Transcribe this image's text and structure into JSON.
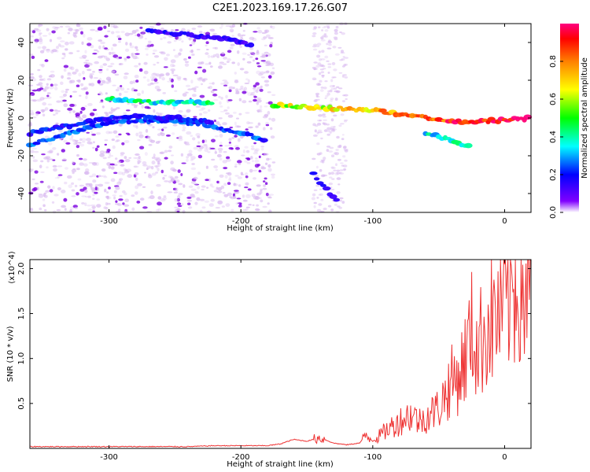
{
  "title": "C2E1.2023.169.17.26.G07",
  "colors": {
    "snr_line": "#ee3333",
    "axis": "#000000",
    "spectro_low": "#d8b8f0",
    "spectro_mid": "#7b00e0"
  },
  "chart_data": [
    {
      "type": "heatmap",
      "xlabel": "Height of straight line (km)",
      "ylabel": "Frequency (Hz)",
      "xlim": [
        -360,
        20
      ],
      "ylim": [
        -50,
        50
      ],
      "xticks": [
        -300,
        -200,
        -100,
        0
      ],
      "yticks": [
        -40,
        -20,
        0,
        20,
        40
      ],
      "colorbar": {
        "label": "Normalized spectral amplitude",
        "range": [
          0,
          1
        ],
        "ticks": [
          "0.0",
          "0.2",
          "0.4",
          "0.6",
          "0.8"
        ],
        "colormap": "rainbow"
      },
      "ridges": [
        {
          "points": [
            [
              -360,
              -14
            ],
            [
              -330,
              -8
            ],
            [
              -300,
              -2
            ],
            [
              -260,
              -1
            ],
            [
              -230,
              -3
            ],
            [
              -200,
              -8
            ],
            [
              -180,
              -12
            ]
          ],
          "amplitude": 0.3
        },
        {
          "points": [
            [
              -360,
              -8
            ],
            [
              -330,
              -4
            ],
            [
              -300,
              0
            ],
            [
              -280,
              1
            ],
            [
              -250,
              0
            ],
            [
              -220,
              -2
            ]
          ],
          "amplitude": 0.25
        },
        {
          "points": [
            [
              -300,
              10
            ],
            [
              -280,
              9
            ],
            [
              -260,
              8
            ],
            [
              -220,
              8
            ]
          ],
          "amplitude": 0.5
        },
        {
          "points": [
            [
              -270,
              46
            ],
            [
              -240,
              44
            ],
            [
              -210,
              42
            ],
            [
              -190,
              38
            ]
          ],
          "amplitude": 0.2
        },
        {
          "points": [
            [
              -175,
              7
            ],
            [
              -150,
              6
            ],
            [
              -125,
              5
            ],
            [
              -100,
              4
            ],
            [
              -80,
              2
            ],
            [
              -60,
              0
            ],
            [
              -40,
              -2
            ],
            [
              -20,
              -2
            ],
            [
              0,
              -1
            ],
            [
              20,
              0
            ]
          ],
          "amplitude": 0.9
        },
        {
          "points": [
            [
              -60,
              -8
            ],
            [
              -50,
              -10
            ],
            [
              -40,
              -12
            ],
            [
              -25,
              -16
            ]
          ],
          "amplitude": 0.5
        },
        {
          "points": [
            [
              -145,
              -30
            ],
            [
              -135,
              -38
            ],
            [
              -125,
              -46
            ]
          ],
          "amplitude": 0.2
        }
      ]
    },
    {
      "type": "line",
      "xlabel": "Height of straight line (km)",
      "ylabel": "SNR (10 * v/v)",
      "y_multiplier": "(x10^4)",
      "xlim": [
        -360,
        20
      ],
      "ylim": [
        0,
        2.1
      ],
      "xticks": [
        -300,
        -200,
        -100,
        0
      ],
      "yticks": [
        0.5,
        1.0,
        1.5,
        2.0
      ],
      "ytick_labels": [
        "0.5",
        "1.0",
        "1.5",
        "2.0"
      ],
      "series": [
        {
          "x": [
            -360,
            -340,
            -320,
            -300,
            -280,
            -260,
            -240,
            -220,
            -200,
            -180,
            -170,
            -160,
            -150,
            -140,
            -130,
            -120,
            -110,
            -105,
            -100,
            -95,
            -90,
            -85,
            -80,
            -75,
            -70,
            -65,
            -60,
            -55,
            -50,
            -45,
            -40,
            -35,
            -30,
            -25,
            -20,
            -15,
            -10,
            -5,
            0,
            5,
            10,
            15,
            20
          ],
          "y": [
            0.02,
            0.02,
            0.02,
            0.02,
            0.02,
            0.02,
            0.02,
            0.03,
            0.03,
            0.03,
            0.05,
            0.1,
            0.08,
            0.12,
            0.06,
            0.04,
            0.06,
            0.15,
            0.08,
            0.14,
            0.2,
            0.25,
            0.3,
            0.35,
            0.38,
            0.3,
            0.35,
            0.4,
            0.45,
            0.6,
            0.75,
            0.8,
            1.0,
            1.3,
            1.1,
            1.35,
            1.4,
            1.5,
            1.6,
            1.7,
            1.9,
            1.8,
            1.6
          ]
        }
      ]
    }
  ]
}
